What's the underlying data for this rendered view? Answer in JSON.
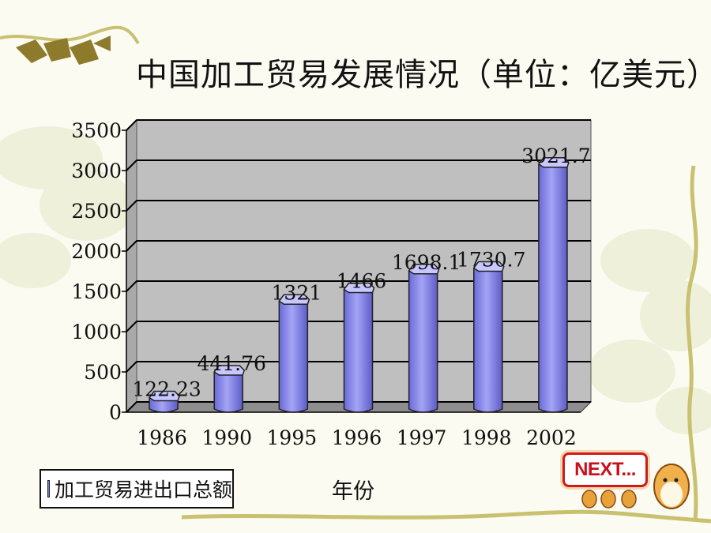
{
  "title": "中国加工贸易发展情况（单位：亿美元）",
  "chart_data": {
    "type": "bar",
    "categories": [
      "1986",
      "1990",
      "1995",
      "1996",
      "1997",
      "1998",
      "2002"
    ],
    "series": [
      {
        "name": "加工贸易进出口总额",
        "values": [
          122.23,
          441.76,
          1321,
          1466,
          1698.1,
          1730.7,
          3021.7
        ]
      }
    ],
    "data_labels": [
      "122.23",
      "441.76",
      "1321",
      "1466",
      "1698.1",
      "1730.7",
      "3021.7"
    ],
    "ylim": [
      0,
      3500
    ],
    "yticks": [
      0,
      500,
      1000,
      1500,
      2000,
      2500,
      3000,
      3500
    ],
    "xlabel": "年份",
    "ylabel": "",
    "grid": true,
    "legend_position": "bottom-left",
    "colors": {
      "bar": "#7b7bea",
      "wall": "#bfbfbf"
    }
  },
  "legend": {
    "label": "加工贸易进出口总额"
  },
  "nav": {
    "next_label": "NEXT..."
  },
  "colors": {
    "next_border": "#d21a1a",
    "next_text": "#c8101b",
    "vine": "#c9c170"
  }
}
